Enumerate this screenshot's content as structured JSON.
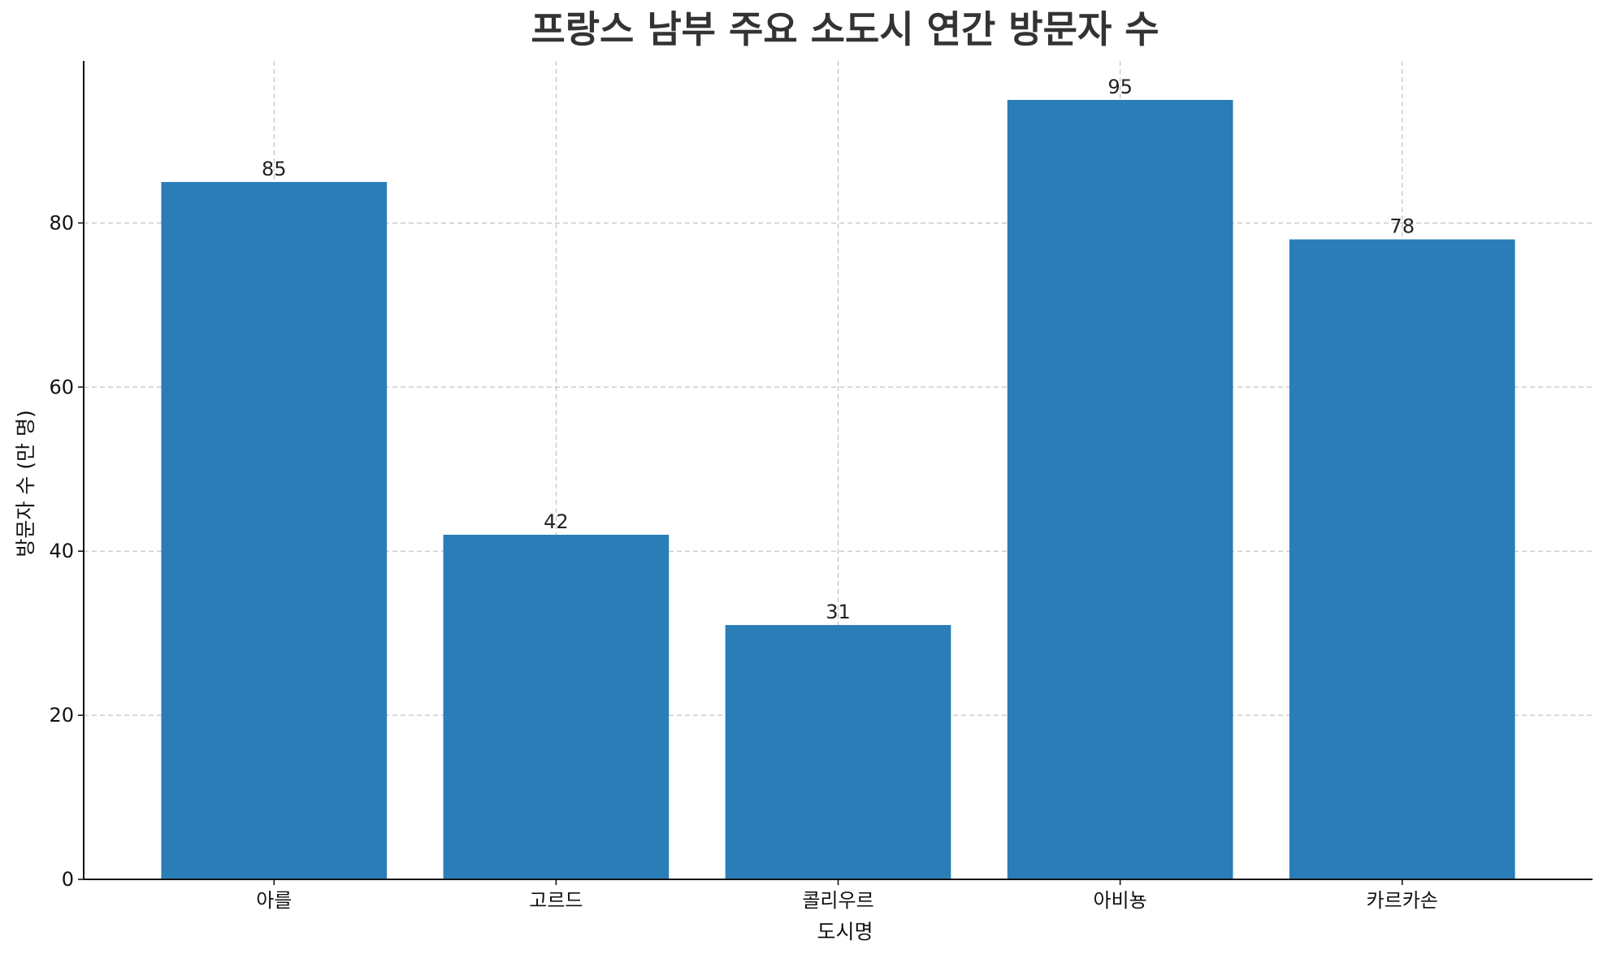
{
  "chart_data": {
    "type": "bar",
    "title": "프랑스 남부 주요 소도시 연간 방문자 수",
    "xlabel": "도시명",
    "ylabel": "방문자 수 (만 명)",
    "categories": [
      "아를",
      "고르드",
      "콜리우르",
      "아비뇽",
      "카르카손"
    ],
    "values": [
      85,
      42,
      31,
      95,
      78
    ],
    "data_labels": [
      "85",
      "42",
      "31",
      "95",
      "78"
    ],
    "ylim": [
      0,
      99.75
    ],
    "yticks": [
      0,
      20,
      40,
      60,
      80
    ],
    "ytick_labels": [
      "0",
      "20",
      "40",
      "60",
      "80"
    ],
    "grid": true,
    "bar_color": "#2a7db6"
  }
}
